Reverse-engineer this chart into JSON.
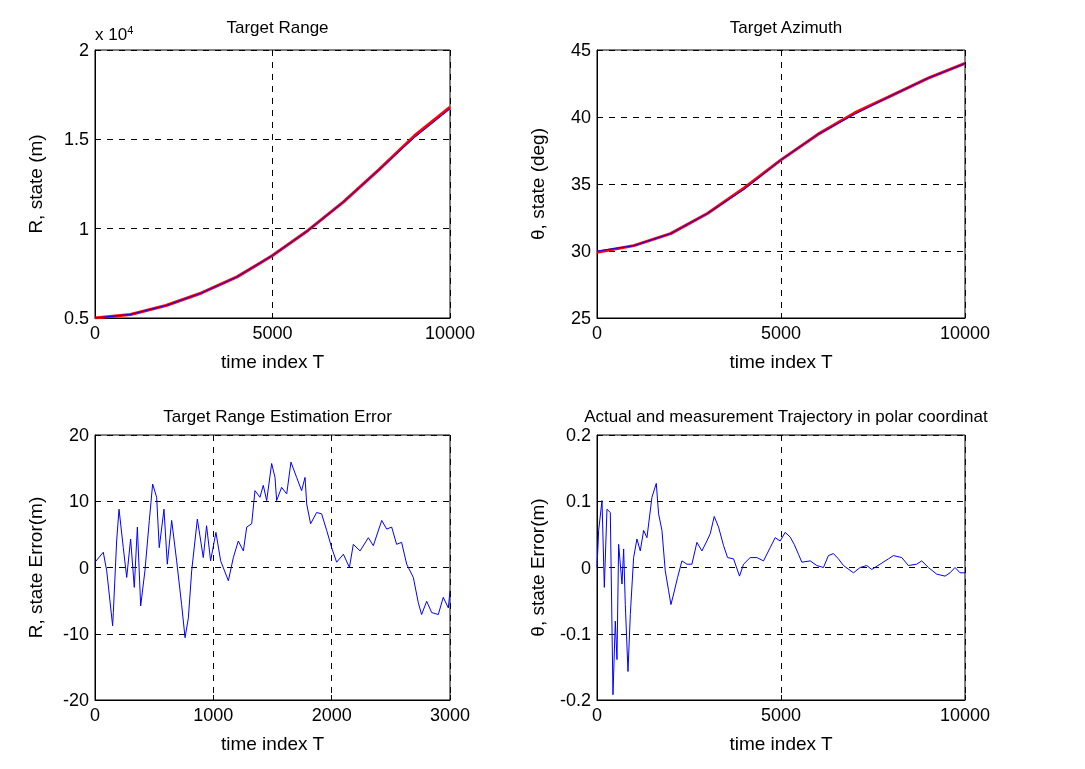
{
  "chart_data": [
    {
      "type": "line",
      "title": "Target Range",
      "xlabel": "time index T",
      "ylabel": "R, state (m)",
      "annotations": [
        "x 10$^{4}$"
      ],
      "x": [
        0,
        1000,
        2000,
        3000,
        4000,
        5000,
        6000,
        7000,
        8000,
        9000,
        10000
      ],
      "series": [
        {
          "color": "#ff0000",
          "values": [
            0.5,
            0.52,
            0.57,
            0.64,
            0.73,
            0.85,
            0.99,
            1.15,
            1.33,
            1.52,
            1.68
          ]
        },
        {
          "color": "#0000ff",
          "values": [
            0.5,
            0.52,
            0.57,
            0.64,
            0.73,
            0.85,
            0.99,
            1.15,
            1.33,
            1.51,
            1.67
          ]
        }
      ],
      "xlim": [
        0,
        10000
      ],
      "xticks": [
        0,
        5000,
        10000
      ],
      "ylim": [
        0.5,
        2
      ],
      "yticks": [
        0.5,
        1,
        1.5,
        2
      ],
      "grid": true
    },
    {
      "type": "line",
      "title": "Target Azimuth",
      "xlabel": "time index T",
      "ylabel": "θ, state (deg)",
      "x": [
        0,
        1000,
        2000,
        3000,
        4000,
        5000,
        6000,
        7000,
        8000,
        9000,
        10000
      ],
      "series": [
        {
          "color": "#ff0000",
          "values": [
            29.9,
            30.4,
            31.3,
            32.8,
            34.7,
            36.8,
            38.7,
            40.3,
            41.6,
            42.9,
            44.0
          ]
        },
        {
          "color": "#0000ff",
          "values": [
            30,
            30.4,
            31.3,
            32.8,
            34.6,
            36.8,
            38.7,
            40.2,
            41.6,
            42.9,
            44.0
          ]
        }
      ],
      "xlim": [
        0,
        10000
      ],
      "xticks": [
        0,
        5000,
        10000
      ],
      "ylim": [
        25,
        45
      ],
      "yticks": [
        25,
        30,
        35,
        40,
        45
      ],
      "grid": true
    },
    {
      "type": "line",
      "title": "Target Range Estimation Error",
      "xlabel": "time index T",
      "ylabel": "R, state Error(m)",
      "x": [
        0,
        70,
        99,
        149,
        155,
        183,
        203,
        239,
        268,
        301,
        332,
        358,
        386,
        422,
        459,
        487,
        521,
        543,
        583,
        611,
        648,
        690,
        732,
        761,
        789,
        817,
        865,
        915,
        943,
        977,
        1022,
        1062,
        1127,
        1169,
        1211,
        1254,
        1282,
        1324,
        1352,
        1394,
        1422,
        1451,
        1493,
        1521,
        1535,
        1577,
        1620,
        1656,
        1704,
        1746,
        1775,
        1789,
        1822,
        1873,
        1915,
        1958,
        2000,
        2042,
        2099,
        2150,
        2183,
        2240,
        2310,
        2352,
        2423,
        2465,
        2507,
        2549,
        2591,
        2634,
        2690,
        2732,
        2760,
        2803,
        2845,
        2901,
        2943,
        2986,
        3000
      ],
      "series": [
        {
          "color": "#0000ff",
          "values": [
            0.8,
            2.3,
            -0.5,
            -8.8,
            -6.8,
            4.0,
            8.8,
            3.0,
            -1.5,
            4.3,
            -3.0,
            6.1,
            -5.8,
            -0.5,
            7.1,
            12.6,
            10.6,
            3.0,
            8.8,
            0.5,
            7.1,
            1.0,
            -5.6,
            -10.6,
            -7.6,
            -0.5,
            7.3,
            1.5,
            6.3,
            1.0,
            5.3,
            1.0,
            -2.0,
            1.5,
            4.0,
            2.5,
            6.1,
            6.6,
            11.6,
            10.6,
            12.4,
            10.1,
            15.7,
            13.6,
            10.1,
            12.1,
            11.1,
            15.9,
            13.6,
            11.6,
            13.6,
            9.6,
            6.6,
            8.3,
            8.1,
            5.6,
            3.0,
            0.8,
            2.0,
            0,
            3.5,
            2.5,
            4.5,
            3.3,
            7.1,
            5.8,
            6.1,
            3.5,
            3.8,
            0.5,
            -1.5,
            -5.3,
            -7.1,
            -5.1,
            -6.8,
            -7.1,
            -4.5,
            -6.1,
            -3.5
          ]
        }
      ],
      "xlim": [
        0,
        3000
      ],
      "xticks": [
        0,
        1000,
        2000,
        3000
      ],
      "ylim": [
        -20,
        20
      ],
      "yticks": [
        -20,
        -10,
        0,
        10,
        20
      ],
      "grid": true
    },
    {
      "type": "line",
      "title": "Actual and measurement Trajectory in polar coordinat",
      "xlabel": "time index T",
      "ylabel": "θ, state Error(m)",
      "x": [
        0,
        45,
        136,
        199,
        271,
        362,
        434,
        498,
        543,
        588,
        679,
        724,
        769,
        842,
        905,
        995,
        1086,
        1176,
        1267,
        1357,
        1493,
        1611,
        1674,
        1765,
        1855,
        1946,
        2009,
        2082,
        2190,
        2308,
        2444,
        2579,
        2715,
        2851,
        2986,
        3077,
        3186,
        3303,
        3439,
        3548,
        3711,
        3873,
        3982,
        4163,
        4344,
        4525,
        4706,
        4842,
        4978,
        5113,
        5249,
        5358,
        5475,
        5566,
        5792,
        5973,
        6154,
        6289,
        6425,
        6561,
        6697,
        6969,
        7150,
        7330,
        7466,
        7693,
        7919,
        8055,
        8281,
        8462,
        8688,
        8824,
        9005,
        9231,
        9457,
        9593,
        9729,
        9865,
        10000
      ],
      "series": [
        {
          "color": "#0000ff",
          "values": [
            0,
            0.056,
            0.101,
            -0.03,
            0.088,
            0.083,
            -0.192,
            -0.081,
            -0.139,
            0.035,
            -0.025,
            0.028,
            -0.056,
            -0.157,
            -0.071,
            0.015,
            0.043,
            0.025,
            0.056,
            0.045,
            0.106,
            0.127,
            0.081,
            0.056,
            -0.005,
            -0.035,
            -0.056,
            -0.04,
            -0.015,
            0.01,
            0.005,
            0.005,
            0.038,
            0.025,
            0.04,
            0.051,
            0.077,
            0.061,
            0.033,
            0.015,
            0.013,
            -0.013,
            0.005,
            0.015,
            0.015,
            0.01,
            0.03,
            0.045,
            0.04,
            0.053,
            0.046,
            0.035,
            0.02,
            0.008,
            0.01,
            0.003,
            0,
            0.018,
            0.021,
            0.013,
            0.003,
            -0.008,
            0,
            0.003,
            -0.003,
            0.005,
            0.013,
            0.018,
            0.015,
            0.003,
            0.005,
            0.01,
            0,
            -0.01,
            -0.013,
            -0.008,
            0,
            -0.008,
            -0.008
          ]
        }
      ],
      "xlim": [
        0,
        10000
      ],
      "xticks": [
        0,
        5000,
        10000
      ],
      "ylim": [
        -0.2,
        0.2
      ],
      "yticks": [
        -0.2,
        -0.1,
        0,
        0.1,
        0.2
      ],
      "grid": true
    }
  ]
}
